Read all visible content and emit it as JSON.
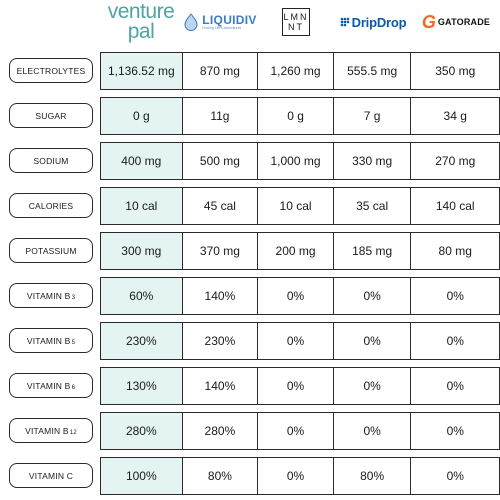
{
  "brands": {
    "venture_pal": {
      "line1": "venture",
      "line2": "pal"
    },
    "liquid_iv": {
      "name": "LIQUIDIV",
      "tagline": "Fueling Life's Adventures"
    },
    "lmnt": {
      "line1": "LMN",
      "line2": "NT"
    },
    "dripdrop": {
      "name": "DripDrop"
    },
    "gatorade": {
      "mark": "G",
      "name": "GATORADE"
    }
  },
  "colors": {
    "highlight_column": "#e3f4f3",
    "venture_pal_teal": "#4fa3a3",
    "liquid_iv_blue": "#3a7bc8",
    "dripdrop_blue": "#0a5aa8",
    "gatorade_orange": "#f26a21"
  },
  "rows": [
    {
      "label": "ELECTROLYTES",
      "values": [
        "1,136.52 mg",
        "870 mg",
        "1,260 mg",
        "555.5 mg",
        "350 mg"
      ]
    },
    {
      "label": "SUGAR",
      "values": [
        "0 g",
        "11g",
        "0 g",
        "7 g",
        "34 g"
      ]
    },
    {
      "label": "SODIUM",
      "values": [
        "400 mg",
        "500 mg",
        "1,000 mg",
        "330 mg",
        "270 mg"
      ]
    },
    {
      "label": "CALORIES",
      "values": [
        "10 cal",
        "45 cal",
        "10 cal",
        "35 cal",
        "140 cal"
      ]
    },
    {
      "label": "POTASSIUM",
      "values": [
        "300 mg",
        "370 mg",
        "200 mg",
        "185 mg",
        "80 mg"
      ]
    },
    {
      "label": "VITAMIN B",
      "sub": "3",
      "values": [
        "60%",
        "140%",
        "0%",
        "0%",
        "0%"
      ]
    },
    {
      "label": "VITAMIN B",
      "sub": "5",
      "values": [
        "230%",
        "230%",
        "0%",
        "0%",
        "0%"
      ]
    },
    {
      "label": "VITAMIN B",
      "sub": "6",
      "values": [
        "130%",
        "140%",
        "0%",
        "0%",
        "0%"
      ]
    },
    {
      "label": "VITAMIN B",
      "sub": "12",
      "values": [
        "280%",
        "280%",
        "0%",
        "0%",
        "0%"
      ]
    },
    {
      "label": "VITAMIN C",
      "values": [
        "100%",
        "80%",
        "0%",
        "80%",
        "0%"
      ]
    }
  ]
}
